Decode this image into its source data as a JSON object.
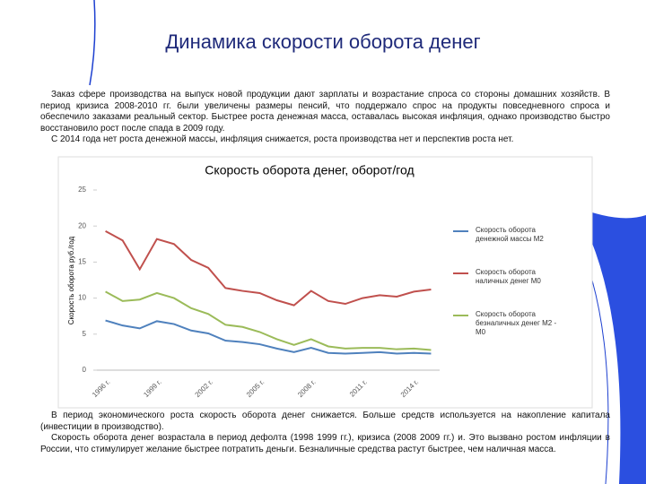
{
  "slide": {
    "title": "Динамика скорости оборота денег",
    "paragraphs_top": [
      "Заказ сфере производства на выпуск новой продукции дают зарплаты и возрастание спроса со стороны домашних хозяйств. В период кризиса 2008-2010 гг. были увеличены размеры пенсий, что поддержало спрос на продукты повседневного спроса и обеспечило заказами реальный сектор. Быстрее роста денежная масса, оставалась высокая инфляция, однако производство быстро восстановило рост после спада в 2009 году.",
      "С 2014 года нет роста денежной массы, инфляция снижается, роста производства нет и перспектив роста нет."
    ],
    "paragraphs_bottom": [
      "В период экономического роста скорость оборота денег снижается. Больше средств используется на накопление капитала (инвестиции в производство).",
      "Скорость оборота денег возрастала в период дефолта (1998 1999 гг.), кризиса  (2008 2009 гг.) и. Это вызвано ростом инфляции в России, что стимулирует желание быстрее потратить деньги. Безналичные средства растут быстрее, чем наличная масса."
    ]
  },
  "chart_data": {
    "type": "line",
    "title": "Скорость оборота денег,  оборот/год",
    "y_label": "Скорость оборота руб./год",
    "categories": [
      "1996 г.",
      null,
      null,
      "1999 г.",
      null,
      null,
      "2002 г.",
      null,
      null,
      "2005 г.",
      null,
      null,
      "2008 г.",
      null,
      null,
      "2011 г.",
      null,
      null,
      "2014 г.",
      null
    ],
    "series": [
      {
        "name": "Скорость оборота денежной массы  М2",
        "color": "#4f81bd",
        "values": [
          6.9,
          6.2,
          5.8,
          6.8,
          6.4,
          5.5,
          5.1,
          4.1,
          3.9,
          3.6,
          3,
          2.5,
          3.1,
          2.4,
          2.3,
          2.4,
          2.5,
          2.3,
          2.4,
          2.3
        ]
      },
      {
        "name": "Скорость оборота наличных денег  М0",
        "color": "#c0504d",
        "values": [
          19.3,
          18,
          14,
          18.2,
          17.5,
          15.3,
          14.2,
          11.4,
          11,
          10.7,
          9.7,
          9,
          11,
          9.6,
          9.2,
          10,
          10.4,
          10.2,
          10.9,
          11.2
        ]
      },
      {
        "name": "Скорость оборота безналичных денег М2 - М0",
        "color": "#9bbb59",
        "values": [
          10.9,
          9.6,
          9.8,
          10.7,
          10,
          8.6,
          7.8,
          6.3,
          6,
          5.3,
          4.3,
          3.5,
          4.3,
          3.3,
          3,
          3.1,
          3.1,
          2.9,
          3,
          2.8
        ]
      }
    ],
    "ylim": [
      0,
      25
    ],
    "yticks": [
      0,
      5,
      10,
      15,
      20,
      25
    ]
  }
}
